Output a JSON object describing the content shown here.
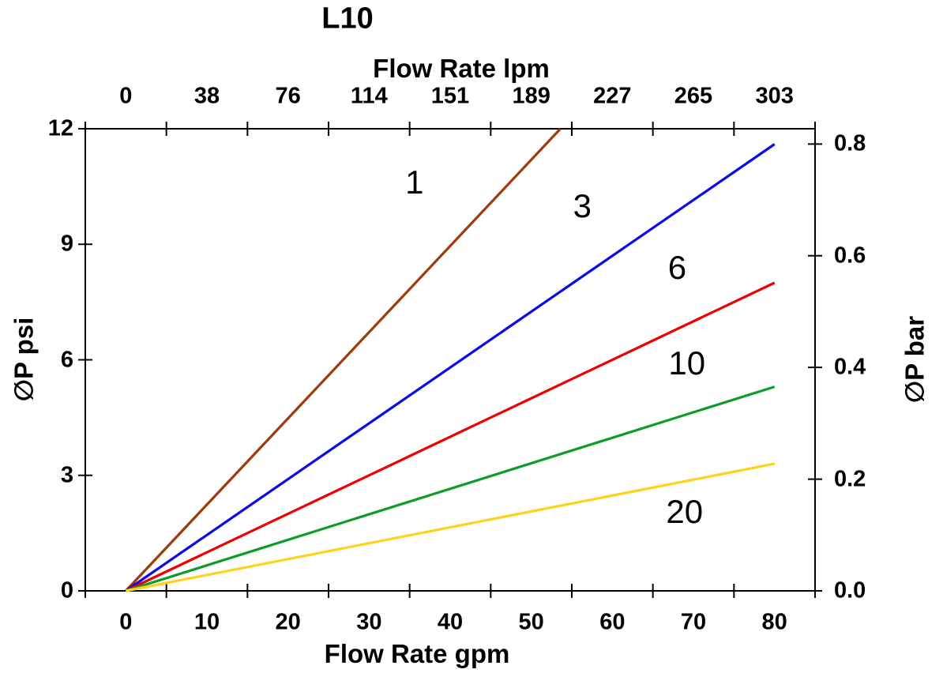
{
  "page": {
    "background": "#FFFFFF"
  },
  "chart_data": {
    "type": "line",
    "title": "L10",
    "grid": false,
    "legend": "inline-curve-labels",
    "x_top": {
      "label": "Flow Rate lpm",
      "ticks": [
        "0",
        "38",
        "76",
        "114",
        "151",
        "189",
        "227",
        "265",
        "303"
      ]
    },
    "x_bottom": {
      "label": "Flow Rate gpm",
      "ticks": [
        "0",
        "10",
        "20",
        "30",
        "40",
        "50",
        "60",
        "70",
        "80"
      ],
      "min": 0,
      "max": 80
    },
    "y_left": {
      "label": "∅P psi",
      "ticks": [
        "0",
        "3",
        "6",
        "9",
        "12"
      ],
      "min": 0,
      "max": 12
    },
    "y_right": {
      "label": "∅P bar",
      "ticks": [
        "0.0",
        "0.2",
        "0.4",
        "0.6",
        "0.8"
      ],
      "psi_per_bar": 14.5038
    },
    "series": [
      {
        "name": "1",
        "color": "#9E3A0C",
        "points": [
          [
            0,
            0
          ],
          [
            53.6,
            12
          ]
        ],
        "clipped_at_top": true,
        "label_at": [
          35.6,
          10.6
        ]
      },
      {
        "name": "3",
        "color": "#0B0BE8",
        "points": [
          [
            0,
            0
          ],
          [
            80,
            11.6
          ]
        ],
        "label_at": [
          56.3,
          10.0
        ]
      },
      {
        "name": "6",
        "color": "#EE0000",
        "points": [
          [
            0,
            0
          ],
          [
            80,
            8.0
          ]
        ],
        "label_at": [
          68.0,
          8.4
        ]
      },
      {
        "name": "10",
        "color": "#0F9B28",
        "points": [
          [
            0,
            0
          ],
          [
            80,
            5.3
          ]
        ],
        "label_at": [
          69.2,
          5.9
        ]
      },
      {
        "name": "20",
        "color": "#FFD21E",
        "points": [
          [
            0,
            0
          ],
          [
            80,
            3.3
          ]
        ],
        "label_at": [
          68.9,
          2.05
        ]
      }
    ]
  }
}
